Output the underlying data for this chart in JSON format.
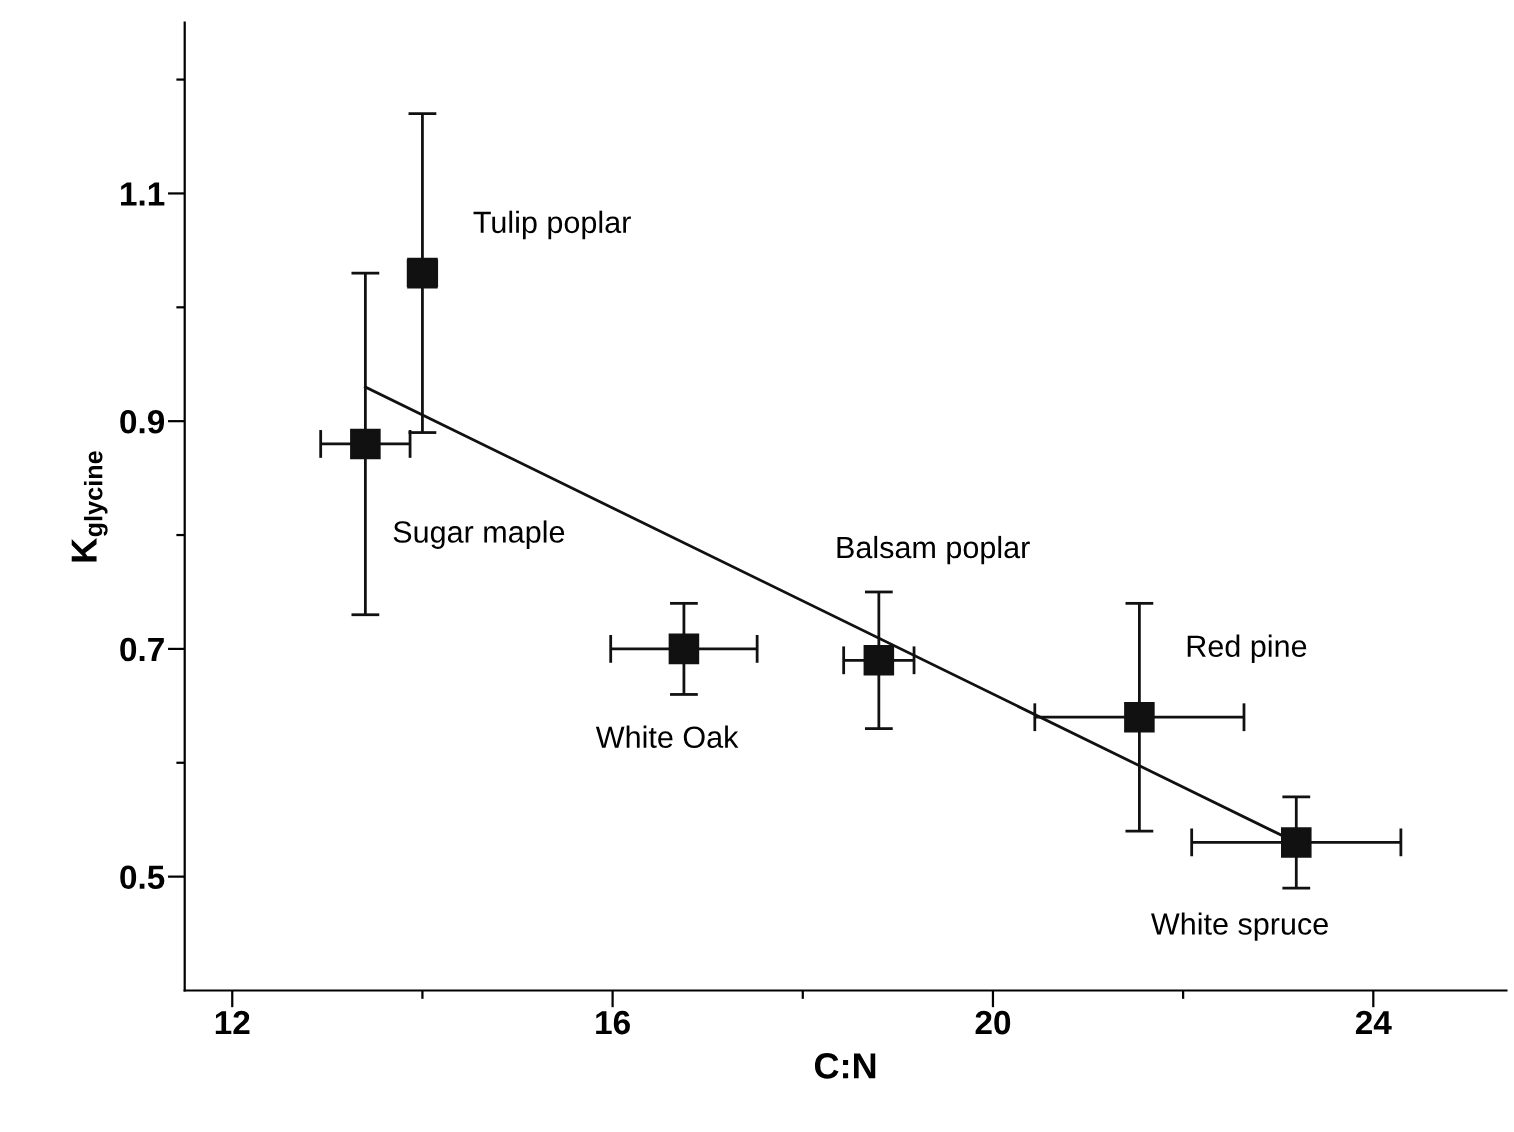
{
  "chart_data": {
    "type": "scatter",
    "xlabel": "C:N",
    "ylabel": "K$_{glycine}$",
    "xlim": [
      11.5,
      25.4
    ],
    "xticks": [
      12,
      {
        "value": 14,
        "label": null
      },
      16,
      {
        "value": 18,
        "label": null
      },
      20,
      {
        "value": 22,
        "label": null
      },
      24
    ],
    "ylim": [
      0.4,
      1.25
    ],
    "yticks": [
      {
        "value": 0.5,
        "label": "0.5"
      },
      {
        "value": 0.6,
        "label": null
      },
      {
        "value": 0.7,
        "label": "0.7"
      },
      {
        "value": 0.8,
        "label": null
      },
      {
        "value": 0.9,
        "label": "0.9"
      },
      {
        "value": 1.0,
        "label": null
      },
      {
        "value": 1.1,
        "label": "1.1"
      },
      {
        "value": 1.2,
        "label": null
      }
    ],
    "grid": false,
    "legend": false,
    "series": [
      {
        "marker": "square",
        "color": "#111111",
        "x": [
          13.4,
          14.0,
          16.75,
          18.8,
          21.54,
          23.19
        ],
        "values": [
          0.88,
          1.03,
          0.7,
          0.69,
          0.64,
          0.53
        ],
        "errors": [
          0.15,
          0.14,
          0.04,
          0.06,
          0.1,
          0.04
        ],
        "xerrors": [
          0.47,
          0.15,
          0.77,
          0.37,
          1.1,
          1.1
        ]
      },
      {
        "type": "line",
        "color": "#111111",
        "x": [
          13.4,
          23.19
        ],
        "values": [
          0.93,
          0.53
        ]
      }
    ],
    "annotations": [
      "Tulip poplar",
      "Sugar maple",
      "White Oak",
      "Balsam poplar",
      "Red pine",
      "White spruce"
    ]
  }
}
